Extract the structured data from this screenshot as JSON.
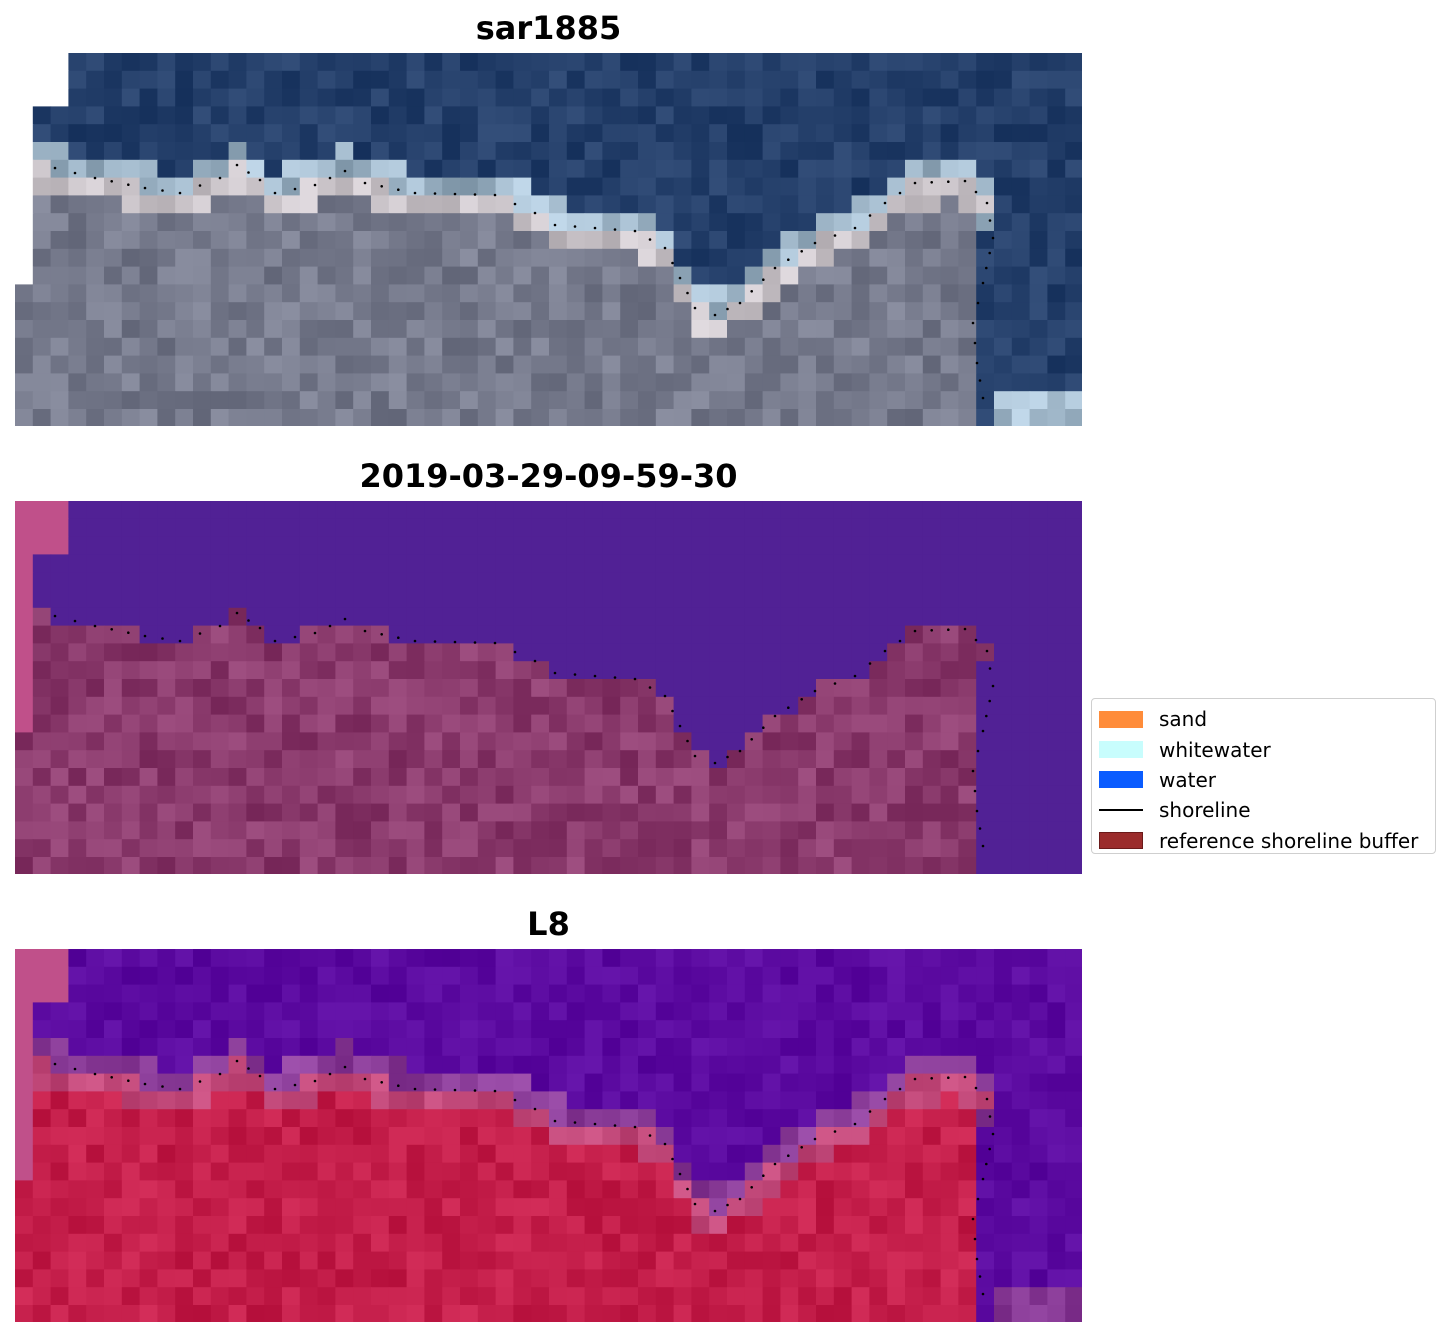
{
  "panels": [
    {
      "title": "sar1885",
      "style": "rgb"
    },
    {
      "title": "2019-03-29-09-59-30",
      "style": "classified"
    },
    {
      "title": "L8",
      "style": "index"
    }
  ],
  "legend": {
    "items": [
      {
        "label": "sand",
        "color": "#ff8c3a",
        "kind": "patch"
      },
      {
        "label": "whitewater",
        "color": "#c8fdfd",
        "kind": "patch"
      },
      {
        "label": "water",
        "color": "#0a5cff",
        "kind": "patch"
      },
      {
        "label": "shoreline",
        "color": "#000000",
        "kind": "line"
      },
      {
        "label": "reference shoreline buffer",
        "color": "#9b2c2c",
        "kind": "patch-outlined"
      }
    ]
  },
  "colors": {
    "sea_dark": "#243f6a",
    "classified_water": "#512195",
    "classified_land": "#8a3a6c",
    "index_water": "#5b0aa0",
    "index_land": "#c41e4a",
    "nodata_pink": "#c0508a",
    "shoreline_dots": "#000000"
  }
}
